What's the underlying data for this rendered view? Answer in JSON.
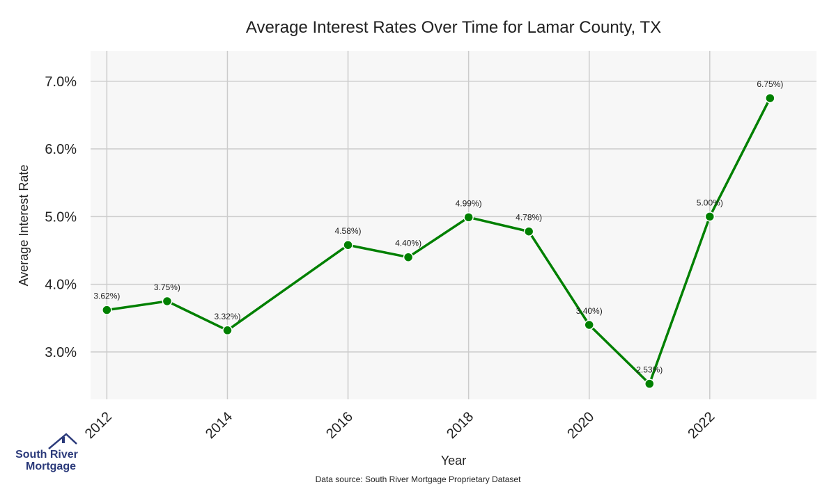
{
  "chart_data": {
    "type": "line",
    "title": "Average Interest Rates Over Time for Lamar County, TX",
    "xlabel": "Year",
    "ylabel": "Average Interest Rate",
    "x": [
      2012,
      2013,
      2014,
      2016,
      2017,
      2018,
      2019,
      2020,
      2021,
      2022,
      2023
    ],
    "values": [
      3.62,
      3.75,
      3.32,
      4.58,
      4.4,
      4.99,
      4.78,
      3.4,
      2.53,
      5.0,
      6.75
    ],
    "data_labels": [
      "3.62%)",
      "3.75%)",
      "3.32%)",
      "4.58%)",
      "4.40%)",
      "4.99%)",
      "4.78%)",
      "3.40%)",
      "2.53%)",
      "5.00%)",
      "6.75%)"
    ],
    "xticks": [
      2012,
      2014,
      2016,
      2018,
      2020,
      2022
    ],
    "xtick_labels": [
      "2012",
      "2014",
      "2016",
      "2018",
      "2020",
      "2022"
    ],
    "yticks": [
      3.0,
      4.0,
      5.0,
      6.0,
      7.0
    ],
    "ytick_labels": [
      "3.0%",
      "4.0%",
      "5.0%",
      "6.0%",
      "7.0%"
    ],
    "xlim": [
      2011.73,
      2023.77
    ],
    "ylim": [
      2.3,
      7.45
    ],
    "grid": true,
    "line_color": "#008000",
    "plot_background": "#f7f7f7",
    "grid_color": "#cccccc"
  },
  "source_note": "Data source: South River Mortgage Proprietary Dataset",
  "logo": {
    "line1": "South River",
    "line2": "Mortgage",
    "color": "#2b3a7a",
    "icon": "house-icon"
  }
}
